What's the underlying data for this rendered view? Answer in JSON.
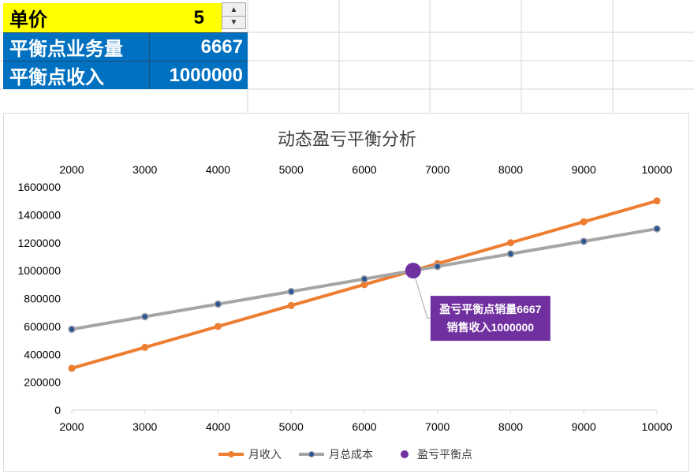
{
  "cells": {
    "unit_price_label": "单价",
    "unit_price_value": "5",
    "breakeven_qty_label": "平衡点业务量",
    "breakeven_qty_value": "6667",
    "breakeven_rev_label": "平衡点收入",
    "breakeven_rev_value": "1000000"
  },
  "chart_data": {
    "type": "line",
    "title": "动态盈亏平衡分析",
    "x": [
      2000,
      3000,
      4000,
      5000,
      6000,
      7000,
      8000,
      9000,
      10000
    ],
    "x_tick_labels": [
      "2000",
      "3000",
      "4000",
      "5000",
      "6000",
      "7000",
      "8000",
      "9000",
      "10000"
    ],
    "y_tick_labels": [
      "0",
      "200000",
      "400000",
      "600000",
      "800000",
      "1000000",
      "1200000",
      "1400000",
      "1600000"
    ],
    "xlim": [
      2000,
      10000
    ],
    "ylim": [
      0,
      1600000
    ],
    "grid": false,
    "legend_position": "bottom",
    "series": [
      {
        "name": "月收入",
        "color": "#ed7d31",
        "values": [
          300000,
          450000,
          600000,
          750000,
          900000,
          1050000,
          1200000,
          1350000,
          1500000
        ]
      },
      {
        "name": "月总成本",
        "color": "#a5a5a5",
        "values": [
          580000,
          670000,
          760000,
          850000,
          940000,
          1030000,
          1120000,
          1210000,
          1300000
        ]
      }
    ],
    "breakeven": {
      "name": "盈亏平衡点",
      "color": "#7030a0",
      "x": 6667,
      "y": 1000000
    },
    "annotation": {
      "line1": "盈亏平衡点销量6667",
      "line2": "销售收入1000000",
      "color": "#7030a0"
    }
  }
}
